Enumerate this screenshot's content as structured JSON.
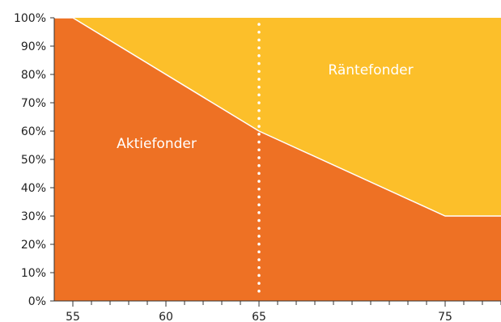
{
  "chart_data": {
    "type": "area",
    "title": "",
    "xlabel": "",
    "ylabel": "",
    "x": [
      54,
      55,
      65,
      75,
      78
    ],
    "x_ticks": [
      55,
      60,
      65,
      75
    ],
    "x_tick_labels": [
      "55",
      "60",
      "65",
      "75"
    ],
    "x_minor_step": 1,
    "xlim": [
      54,
      78
    ],
    "ylim": [
      0,
      100
    ],
    "y_ticks": [
      0,
      10,
      20,
      30,
      40,
      50,
      60,
      70,
      80,
      90,
      100
    ],
    "y_tick_labels": [
      "0%",
      "10%",
      "20%",
      "30%",
      "40%",
      "50%",
      "60%",
      "70%",
      "80%",
      "90%",
      "100%"
    ],
    "series": [
      {
        "name": "Aktiefonder",
        "values": [
          100,
          100,
          60,
          30,
          30
        ],
        "color": "#EE7124"
      },
      {
        "name": "Räntefonder",
        "values": [
          0,
          0,
          40,
          70,
          70
        ],
        "color": "#FCBF2A"
      }
    ],
    "annotations": [
      {
        "type": "vertical-dotted-line",
        "x": 65,
        "color": "#ffffff"
      }
    ],
    "boundary_line_color": "#ffffff",
    "grid": false,
    "legend": "none"
  }
}
